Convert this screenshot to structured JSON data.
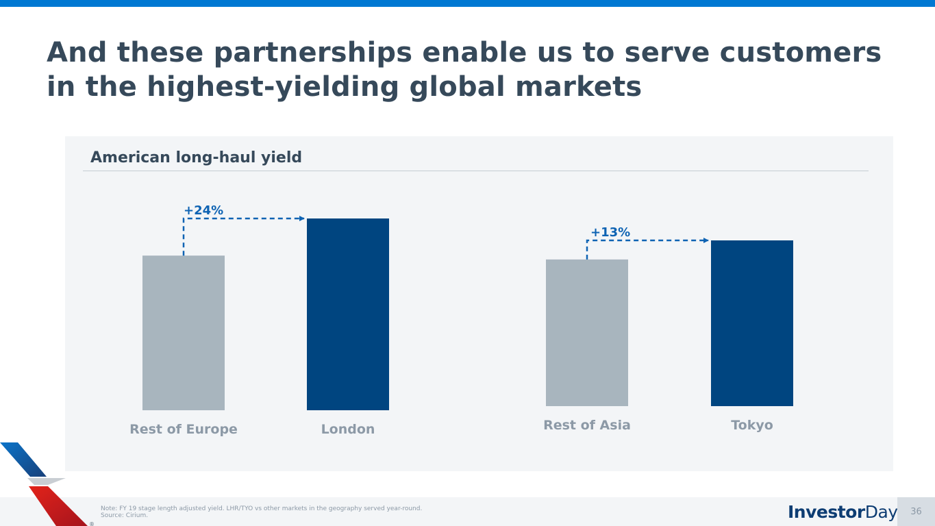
{
  "slide": {
    "title": "And these partnerships enable us to serve customers in the highest-yielding global markets",
    "panel_title": "American long-haul yield",
    "footer_note_line1": "Note: FY 19 stage length adjusted yield. LHR/TYO vs other markets in the geography served year-round.",
    "footer_note_line2": "Source: Cirium.",
    "brand_part1": "Investor",
    "brand_part2": "Day",
    "page_number": "36"
  },
  "colors": {
    "accent_blue": "#0078d2",
    "title_text": "#36495a",
    "bar_gray": "#a8b5be",
    "bar_navy": "#004580",
    "highlight_blue": "#0e63b3"
  },
  "chart_data": [
    {
      "type": "bar",
      "title": "",
      "categories": [
        "Rest of Europe",
        "London"
      ],
      "values": [
        100,
        124
      ],
      "ylim": [
        0,
        124
      ],
      "grid": false,
      "annotation": "+24%"
    },
    {
      "type": "bar",
      "title": "",
      "categories": [
        "Rest of Asia",
        "Tokyo"
      ],
      "values": [
        100,
        113
      ],
      "ylim": [
        0,
        113
      ],
      "grid": false,
      "annotation": "+13%"
    }
  ]
}
